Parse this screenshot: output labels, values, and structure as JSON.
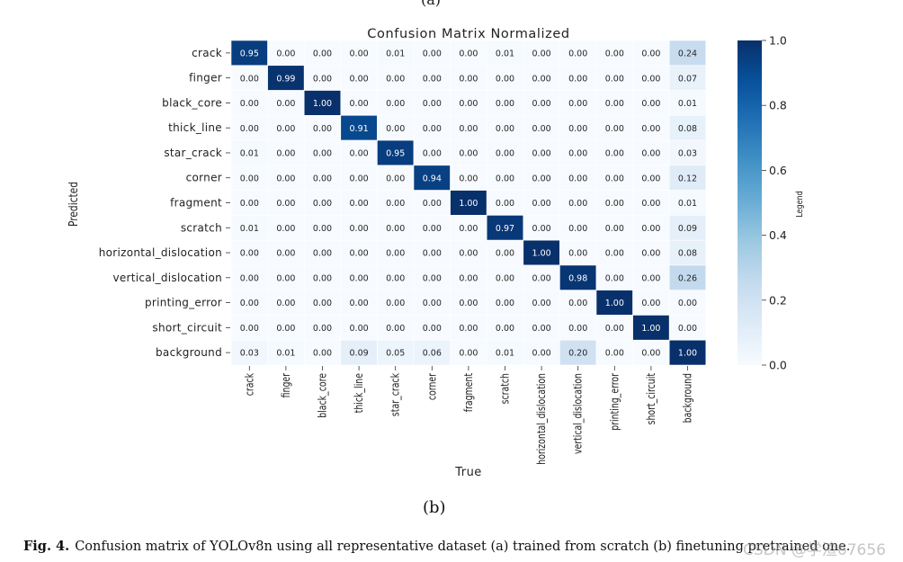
{
  "figure": {
    "top_label": "(a)",
    "sub_label": "(b)",
    "caption_prefix": "Fig. 4.",
    "caption_text": "Confusion matrix of YOLOv8n using all representative dataset (a) trained from scratch (b) finetuning pretrained one.",
    "watermark": "CSDN @学渣67656"
  },
  "chart_data": {
    "type": "heatmap",
    "title": "Confusion Matrix Normalized",
    "xlabel": "True",
    "ylabel": "Predicted",
    "colorbar_label": "Legend",
    "colorbar_ticks": [
      "0.0",
      "0.2",
      "0.4",
      "0.6",
      "0.8",
      "1.0"
    ],
    "colorbar_range": [
      0,
      1
    ],
    "colors": {
      "low": "#f7fbff",
      "high": "#08306b",
      "text_dark": "#262626",
      "text_light": "#ffffff"
    },
    "row_labels": [
      "crack",
      "finger",
      "black_core",
      "thick_line",
      "star_crack",
      "corner",
      "fragment",
      "scratch",
      "horizontal_dislocation",
      "vertical_dislocation",
      "printing_error",
      "short_circuit",
      "background"
    ],
    "col_labels": [
      "crack",
      "finger",
      "black_core",
      "thick_line",
      "star_crack",
      "corner",
      "fragment",
      "scratch",
      "horizontal_dislocation",
      "vertical_dislocation",
      "printing_error",
      "short_circuit",
      "background"
    ],
    "values": [
      [
        0.95,
        0.0,
        0.0,
        0.0,
        0.01,
        0.0,
        0.0,
        0.01,
        0.0,
        0.0,
        0.0,
        0.0,
        0.24
      ],
      [
        0.0,
        0.99,
        0.0,
        0.0,
        0.0,
        0.0,
        0.0,
        0.0,
        0.0,
        0.0,
        0.0,
        0.0,
        0.07
      ],
      [
        0.0,
        0.0,
        1.0,
        0.0,
        0.0,
        0.0,
        0.0,
        0.0,
        0.0,
        0.0,
        0.0,
        0.0,
        0.01
      ],
      [
        0.0,
        0.0,
        0.0,
        0.91,
        0.0,
        0.0,
        0.0,
        0.0,
        0.0,
        0.0,
        0.0,
        0.0,
        0.08
      ],
      [
        0.01,
        0.0,
        0.0,
        0.0,
        0.95,
        0.0,
        0.0,
        0.0,
        0.0,
        0.0,
        0.0,
        0.0,
        0.03
      ],
      [
        0.0,
        0.0,
        0.0,
        0.0,
        0.0,
        0.94,
        0.0,
        0.0,
        0.0,
        0.0,
        0.0,
        0.0,
        0.12
      ],
      [
        0.0,
        0.0,
        0.0,
        0.0,
        0.0,
        0.0,
        1.0,
        0.0,
        0.0,
        0.0,
        0.0,
        0.0,
        0.01
      ],
      [
        0.01,
        0.0,
        0.0,
        0.0,
        0.0,
        0.0,
        0.0,
        0.97,
        0.0,
        0.0,
        0.0,
        0.0,
        0.09
      ],
      [
        0.0,
        0.0,
        0.0,
        0.0,
        0.0,
        0.0,
        0.0,
        0.0,
        1.0,
        0.0,
        0.0,
        0.0,
        0.08
      ],
      [
        0.0,
        0.0,
        0.0,
        0.0,
        0.0,
        0.0,
        0.0,
        0.0,
        0.0,
        0.98,
        0.0,
        0.0,
        0.26
      ],
      [
        0.0,
        0.0,
        0.0,
        0.0,
        0.0,
        0.0,
        0.0,
        0.0,
        0.0,
        0.0,
        1.0,
        0.0,
        0.0
      ],
      [
        0.0,
        0.0,
        0.0,
        0.0,
        0.0,
        0.0,
        0.0,
        0.0,
        0.0,
        0.0,
        0.0,
        1.0,
        0.0
      ],
      [
        0.03,
        0.01,
        0.0,
        0.09,
        0.05,
        0.06,
        0.0,
        0.01,
        0.0,
        0.2,
        0.0,
        0.0,
        1.0
      ]
    ]
  }
}
